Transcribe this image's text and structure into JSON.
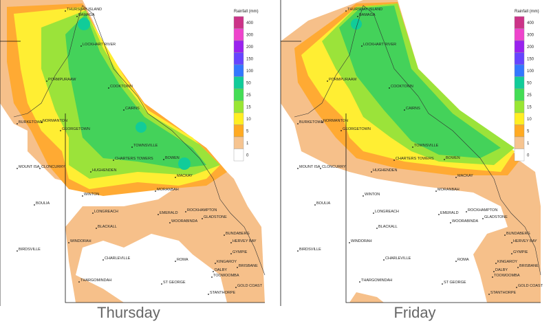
{
  "maps": [
    {
      "title": "Thursday"
    },
    {
      "title": "Friday"
    }
  ],
  "legend": {
    "title": "Rainfall (mm)",
    "levels": [
      400,
      300,
      200,
      150,
      100,
      50,
      25,
      15,
      10,
      5,
      1,
      0
    ],
    "colors": [
      "#cc3388",
      "#ee44cc",
      "#9922ee",
      "#6644ff",
      "#3377ff",
      "#11cc99",
      "#44dd55",
      "#99e633",
      "#ffee22",
      "#ffaa22",
      "#f6c490",
      "#ffffff"
    ]
  },
  "towns": [
    "THURSDAY ISLAND",
    "BAMAGA",
    "LOCKHART RIVER",
    "PORMPURAAW",
    "COOKTOWN",
    "CAIRNS",
    "BURKETOWN",
    "NORMANTON",
    "GEORGETOWN",
    "TOWNSVILLE",
    "MOUNT ISA",
    "CLONCURRY",
    "HUGHENDEN",
    "CHARTERS TOWERS",
    "BOWEN",
    "MACKAY",
    "BOULIA",
    "WINTON",
    "MORANBAH",
    "LONGREACH",
    "EMERALD",
    "WOORABINDA",
    "ROCKHAMPTON",
    "GLADSTONE",
    "BLACKALL",
    "BUNDABERG",
    "HERVEY BAY",
    "BIRDSVILLE",
    "WINDORAH",
    "CHARLEVILLE",
    "ROMA",
    "GYMPIE",
    "KINGAROY",
    "BRISBANE",
    "DALBY",
    "TOOWOOMBA",
    "THARGOMINDAH",
    "ST GEORGE",
    "STANTHORPE",
    "GOLD COAST"
  ]
}
